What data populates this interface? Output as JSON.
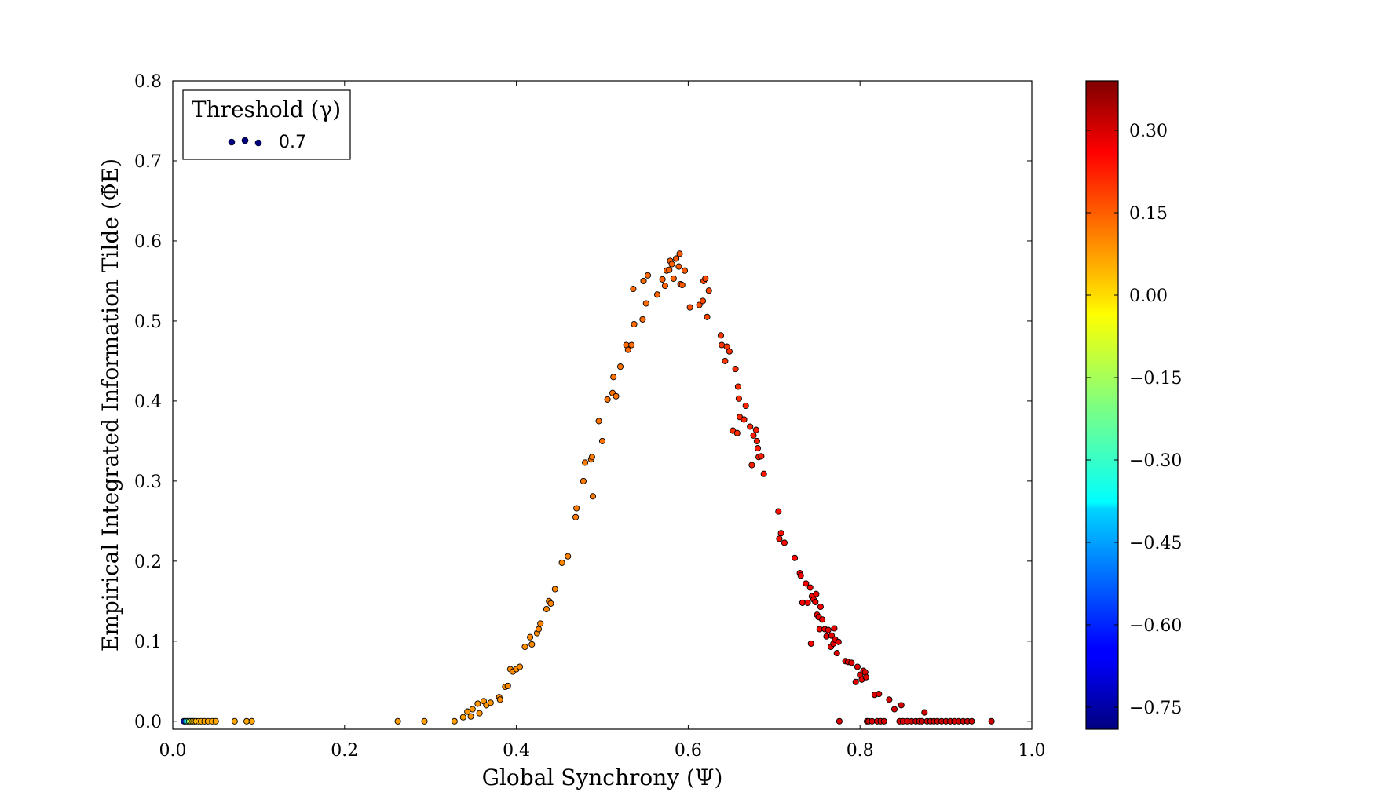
{
  "chart_data": {
    "type": "scatter",
    "xlabel": "Global Synchrony (Ψ)",
    "ylabel": "Empirical Integrated Information Tilde (Φ̃E)",
    "xlim": [
      0.0,
      1.0
    ],
    "ylim": [
      -0.01,
      0.8
    ],
    "xticks": [
      "0.0",
      "0.2",
      "0.4",
      "0.6",
      "0.8",
      "1.0"
    ],
    "yticks": [
      "0.0",
      "0.1",
      "0.2",
      "0.3",
      "0.4",
      "0.5",
      "0.6",
      "0.7",
      "0.8"
    ],
    "grid": false,
    "legend": {
      "title": "Threshold (γ)",
      "entries": [
        "0.7"
      ],
      "placement": "top-left"
    },
    "colorbar": {
      "colormap": "jet",
      "range": [
        -0.79,
        0.39
      ],
      "ticks": [
        "0.30",
        "0.15",
        "0.00",
        "−0.15",
        "−0.30",
        "−0.45",
        "−0.60",
        "−0.75"
      ],
      "tick_values": [
        0.3,
        0.15,
        0.0,
        -0.15,
        -0.3,
        -0.45,
        -0.6,
        -0.75
      ]
    },
    "series": [
      {
        "points": [
          [
            0.013,
            0,
            -0.62
          ],
          [
            0.015,
            0,
            -0.45
          ],
          [
            0.017,
            0,
            -0.3
          ],
          [
            0.019,
            0,
            -0.2
          ],
          [
            0.021,
            0,
            -0.1
          ],
          [
            0.023,
            0,
            0.0
          ],
          [
            0.025,
            0,
            0.02
          ],
          [
            0.027,
            0,
            0.03
          ],
          [
            0.03,
            0,
            0.04
          ],
          [
            0.033,
            0,
            0.04
          ],
          [
            0.037,
            0,
            0.05
          ],
          [
            0.041,
            0,
            0.05
          ],
          [
            0.046,
            0,
            0.05
          ],
          [
            0.05,
            0,
            0.05
          ],
          [
            0.072,
            0,
            0.05
          ],
          [
            0.086,
            0,
            0.05
          ],
          [
            0.092,
            0,
            0.05
          ],
          [
            0.262,
            0,
            0.06
          ],
          [
            0.293,
            0,
            0.06
          ],
          [
            0.328,
            0,
            0.06
          ],
          [
            0.338,
            0.005,
            0.06
          ],
          [
            0.343,
            0.012,
            0.07
          ],
          [
            0.347,
            0.006,
            0.07
          ],
          [
            0.349,
            0.015,
            0.07
          ],
          [
            0.355,
            0.022,
            0.07
          ],
          [
            0.357,
            0.01,
            0.07
          ],
          [
            0.362,
            0.025,
            0.07
          ],
          [
            0.365,
            0.02,
            0.07
          ],
          [
            0.37,
            0.023,
            0.07
          ],
          [
            0.38,
            0.03,
            0.08
          ],
          [
            0.381,
            0.027,
            0.08
          ],
          [
            0.387,
            0.043,
            0.08
          ],
          [
            0.39,
            0.044,
            0.08
          ],
          [
            0.393,
            0.065,
            0.08
          ],
          [
            0.396,
            0.062,
            0.08
          ],
          [
            0.4,
            0.065,
            0.08
          ],
          [
            0.404,
            0.068,
            0.08
          ],
          [
            0.41,
            0.093,
            0.08
          ],
          [
            0.416,
            0.105,
            0.08
          ],
          [
            0.418,
            0.096,
            0.08
          ],
          [
            0.424,
            0.11,
            0.08
          ],
          [
            0.426,
            0.115,
            0.09
          ],
          [
            0.428,
            0.122,
            0.09
          ],
          [
            0.435,
            0.14,
            0.09
          ],
          [
            0.438,
            0.15,
            0.09
          ],
          [
            0.44,
            0.147,
            0.09
          ],
          [
            0.445,
            0.165,
            0.09
          ],
          [
            0.453,
            0.198,
            0.09
          ],
          [
            0.46,
            0.206,
            0.09
          ],
          [
            0.469,
            0.255,
            0.1
          ],
          [
            0.47,
            0.266,
            0.1
          ],
          [
            0.478,
            0.3,
            0.1
          ],
          [
            0.48,
            0.323,
            0.1
          ],
          [
            0.487,
            0.327,
            0.1
          ],
          [
            0.488,
            0.33,
            0.1
          ],
          [
            0.489,
            0.281,
            0.1
          ],
          [
            0.496,
            0.375,
            0.11
          ],
          [
            0.5,
            0.35,
            0.11
          ],
          [
            0.506,
            0.402,
            0.11
          ],
          [
            0.512,
            0.41,
            0.11
          ],
          [
            0.513,
            0.43,
            0.11
          ],
          [
            0.516,
            0.406,
            0.11
          ],
          [
            0.521,
            0.443,
            0.11
          ],
          [
            0.528,
            0.47,
            0.12
          ],
          [
            0.53,
            0.464,
            0.12
          ],
          [
            0.534,
            0.47,
            0.12
          ],
          [
            0.536,
            0.54,
            0.12
          ],
          [
            0.537,
            0.496,
            0.12
          ],
          [
            0.547,
            0.502,
            0.12
          ],
          [
            0.548,
            0.55,
            0.12
          ],
          [
            0.551,
            0.522,
            0.12
          ],
          [
            0.553,
            0.557,
            0.12
          ],
          [
            0.564,
            0.533,
            0.13
          ],
          [
            0.57,
            0.552,
            0.13
          ],
          [
            0.573,
            0.544,
            0.13
          ],
          [
            0.575,
            0.563,
            0.13
          ],
          [
            0.578,
            0.564,
            0.13
          ],
          [
            0.579,
            0.575,
            0.13
          ],
          [
            0.581,
            0.571,
            0.13
          ],
          [
            0.583,
            0.553,
            0.13
          ],
          [
            0.586,
            0.578,
            0.14
          ],
          [
            0.589,
            0.568,
            0.14
          ],
          [
            0.59,
            0.584,
            0.14
          ],
          [
            0.591,
            0.546,
            0.14
          ],
          [
            0.593,
            0.545,
            0.14
          ],
          [
            0.596,
            0.563,
            0.14
          ],
          [
            0.602,
            0.517,
            0.15
          ],
          [
            0.613,
            0.52,
            0.15
          ],
          [
            0.617,
            0.525,
            0.16
          ],
          [
            0.618,
            0.55,
            0.16
          ],
          [
            0.62,
            0.553,
            0.16
          ],
          [
            0.622,
            0.505,
            0.16
          ],
          [
            0.624,
            0.538,
            0.16
          ],
          [
            0.638,
            0.482,
            0.18
          ],
          [
            0.639,
            0.47,
            0.18
          ],
          [
            0.643,
            0.45,
            0.18
          ],
          [
            0.645,
            0.468,
            0.18
          ],
          [
            0.648,
            0.462,
            0.19
          ],
          [
            0.652,
            0.363,
            0.19
          ],
          [
            0.655,
            0.44,
            0.19
          ],
          [
            0.657,
            0.36,
            0.19
          ],
          [
            0.658,
            0.418,
            0.19
          ],
          [
            0.659,
            0.403,
            0.19
          ],
          [
            0.66,
            0.38,
            0.2
          ],
          [
            0.665,
            0.377,
            0.2
          ],
          [
            0.667,
            0.394,
            0.2
          ],
          [
            0.672,
            0.368,
            0.2
          ],
          [
            0.674,
            0.32,
            0.21
          ],
          [
            0.676,
            0.357,
            0.21
          ],
          [
            0.679,
            0.364,
            0.21
          ],
          [
            0.68,
            0.35,
            0.21
          ],
          [
            0.681,
            0.341,
            0.21
          ],
          [
            0.682,
            0.33,
            0.21
          ],
          [
            0.685,
            0.331,
            0.21
          ],
          [
            0.688,
            0.309,
            0.22
          ],
          [
            0.705,
            0.262,
            0.23
          ],
          [
            0.706,
            0.228,
            0.23
          ],
          [
            0.708,
            0.235,
            0.23
          ],
          [
            0.712,
            0.223,
            0.23
          ],
          [
            0.724,
            0.204,
            0.24
          ],
          [
            0.73,
            0.185,
            0.25
          ],
          [
            0.731,
            0.182,
            0.25
          ],
          [
            0.733,
            0.148,
            0.25
          ],
          [
            0.737,
            0.172,
            0.25
          ],
          [
            0.739,
            0.148,
            0.25
          ],
          [
            0.742,
            0.167,
            0.25
          ],
          [
            0.743,
            0.097,
            0.25
          ],
          [
            0.744,
            0.156,
            0.25
          ],
          [
            0.746,
            0.152,
            0.26
          ],
          [
            0.748,
            0.149,
            0.26
          ],
          [
            0.749,
            0.159,
            0.26
          ],
          [
            0.75,
            0.133,
            0.26
          ],
          [
            0.752,
            0.13,
            0.26
          ],
          [
            0.753,
            0.115,
            0.26
          ],
          [
            0.754,
            0.143,
            0.26
          ],
          [
            0.756,
            0.127,
            0.26
          ],
          [
            0.759,
            0.115,
            0.26
          ],
          [
            0.761,
            0.106,
            0.27
          ],
          [
            0.763,
            0.114,
            0.27
          ],
          [
            0.766,
            0.093,
            0.27
          ],
          [
            0.767,
            0.107,
            0.27
          ],
          [
            0.769,
            0.097,
            0.27
          ],
          [
            0.77,
            0.116,
            0.27
          ],
          [
            0.771,
            0.102,
            0.27
          ],
          [
            0.773,
            0.085,
            0.27
          ],
          [
            0.775,
            0.099,
            0.27
          ],
          [
            0.776,
            0,
            0.28
          ],
          [
            0.783,
            0.075,
            0.28
          ],
          [
            0.786,
            0.074,
            0.28
          ],
          [
            0.79,
            0.073,
            0.28
          ],
          [
            0.795,
            0.049,
            0.28
          ],
          [
            0.797,
            0.068,
            0.28
          ],
          [
            0.8,
            0.058,
            0.28
          ],
          [
            0.802,
            0.052,
            0.28
          ],
          [
            0.804,
            0.063,
            0.28
          ],
          [
            0.806,
            0.061,
            0.28
          ],
          [
            0.807,
            0.055,
            0.28
          ],
          [
            0.808,
            0,
            0.28
          ],
          [
            0.81,
            0,
            0.29
          ],
          [
            0.814,
            0,
            0.29
          ],
          [
            0.817,
            0.033,
            0.29
          ],
          [
            0.82,
            0,
            0.29
          ],
          [
            0.822,
            0.034,
            0.29
          ],
          [
            0.824,
            0,
            0.29
          ],
          [
            0.828,
            0,
            0.29
          ],
          [
            0.834,
            0.027,
            0.29
          ],
          [
            0.84,
            0.015,
            0.29
          ],
          [
            0.846,
            0,
            0.29
          ],
          [
            0.848,
            0.02,
            0.29
          ],
          [
            0.85,
            0,
            0.29
          ],
          [
            0.855,
            0,
            0.29
          ],
          [
            0.86,
            0,
            0.3
          ],
          [
            0.865,
            0,
            0.3
          ],
          [
            0.869,
            0,
            0.3
          ],
          [
            0.872,
            0,
            0.3
          ],
          [
            0.875,
            0.011,
            0.3
          ],
          [
            0.878,
            0,
            0.3
          ],
          [
            0.882,
            0,
            0.3
          ],
          [
            0.886,
            0,
            0.3
          ],
          [
            0.89,
            0,
            0.3
          ],
          [
            0.895,
            0,
            0.3
          ],
          [
            0.9,
            0,
            0.3
          ],
          [
            0.905,
            0,
            0.3
          ],
          [
            0.91,
            0,
            0.3
          ],
          [
            0.915,
            0,
            0.3
          ],
          [
            0.92,
            0,
            0.3
          ],
          [
            0.925,
            0,
            0.3
          ],
          [
            0.93,
            0,
            0.3
          ],
          [
            0.953,
            0,
            0.3
          ]
        ]
      }
    ]
  }
}
